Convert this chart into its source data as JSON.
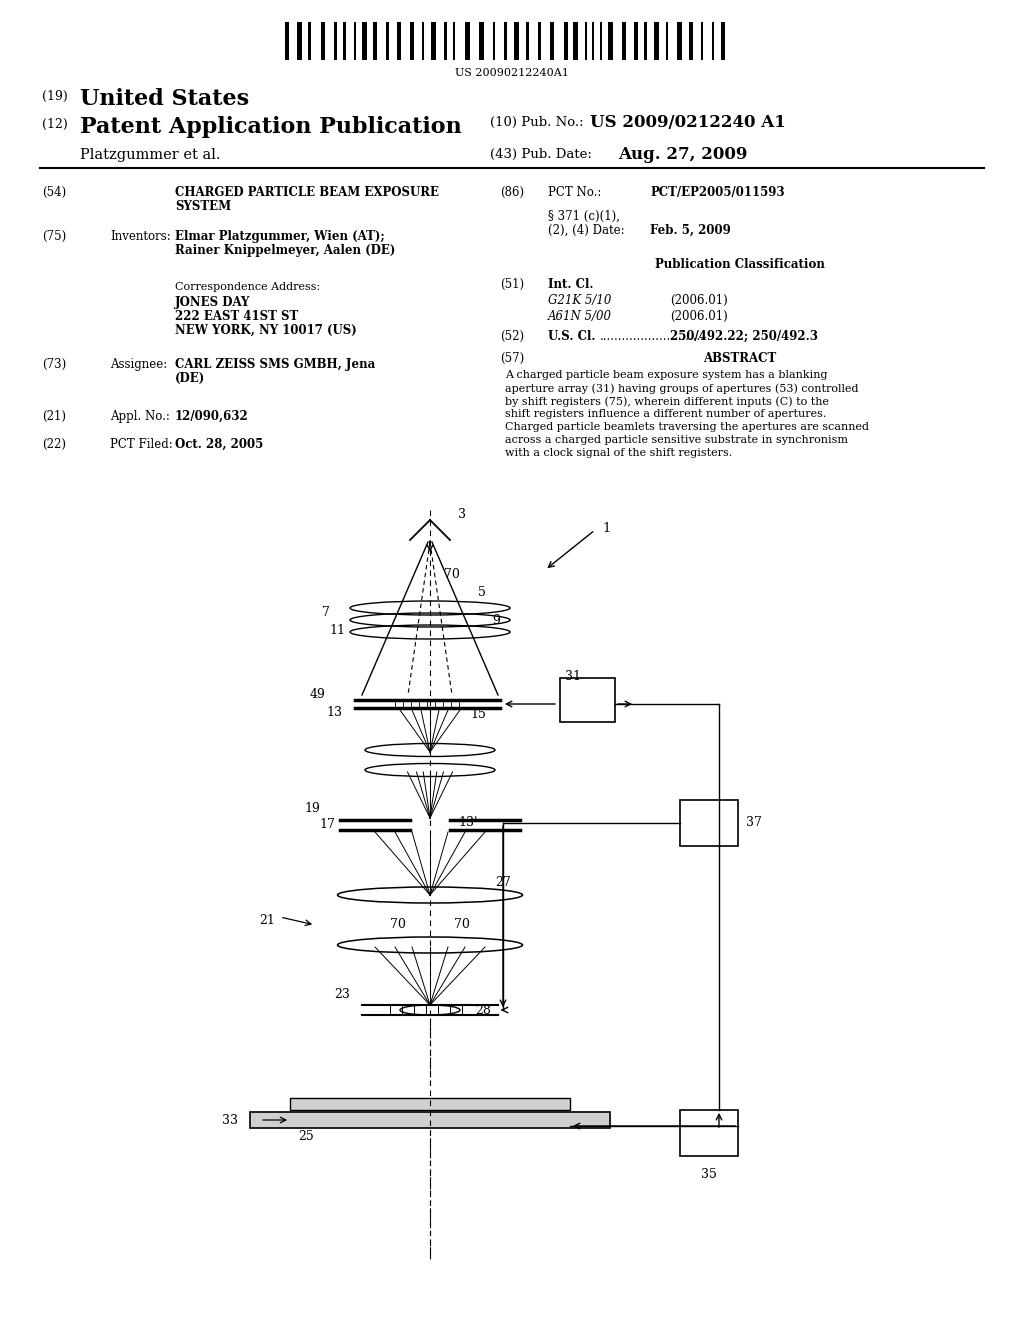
{
  "background_color": "#ffffff",
  "page_width": 10.24,
  "page_height": 13.2,
  "barcode_text": "US 20090212240A1",
  "title_19": "(19)",
  "title_us": "United States",
  "title_12": "(12)",
  "title_pat": "Patent Application Publication",
  "pub_no_label": "(10) Pub. No.:",
  "pub_no_value": "US 2009/0212240 A1",
  "pub_date_label": "(43) Pub. Date:",
  "pub_date_value": "Aug. 27, 2009",
  "inventor_name": "Platzgummer et al.",
  "field_54_label": "(54)",
  "field_54_title": "CHARGED PARTICLE BEAM EXPOSURE\nSYSTEM",
  "field_75_label": "(75)",
  "field_75_name": "Inventors:",
  "field_75_value1": "Elmar Platzgummer, Wien (AT);",
  "field_75_value2": "Rainer Knippelmeyer, Aalen (DE)",
  "field_corr_label": "Correspondence Address:",
  "field_corr_line1": "JONES DAY",
  "field_corr_line2": "222 EAST 41ST ST",
  "field_corr_line3": "NEW YORK, NY 10017 (US)",
  "field_73_label": "(73)",
  "field_73_name": "Assignee:",
  "field_73_value1": "CARL ZEISS SMS GMBH, Jena",
  "field_73_value2": "(DE)",
  "field_21_label": "(21)",
  "field_21_name": "Appl. No.:",
  "field_21_value": "12/090,632",
  "field_22_label": "(22)",
  "field_22_name": "PCT Filed:",
  "field_22_value": "Oct. 28, 2005",
  "field_86_label": "(86)",
  "field_86_name": "PCT No.:",
  "field_86_value": "PCT/EP2005/011593",
  "field_86b_line1": "§ 371 (c)(1),",
  "field_86b_line2": "(2), (4) Date:",
  "field_86b_date": "Feb. 5, 2009",
  "pub_class_label": "Publication Classification",
  "field_51_label": "(51)",
  "field_51_name": "Int. Cl.",
  "field_51_value1": "G21K 5/10",
  "field_51_year1": "(2006.01)",
  "field_51_value2": "A61N 5/00",
  "field_51_year2": "(2006.01)",
  "field_52_label": "(52)",
  "field_52_name": "U.S. Cl.",
  "field_52_dots": "............................",
  "field_52_value": "250/492.22; 250/492.3",
  "field_57_label": "(57)",
  "field_57_name": "ABSTRACT",
  "field_57_value": "A charged particle beam exposure system has a blanking aperture array (31) having groups of apertures (53) controlled by shift registers (75), wherein different inputs (C) to the shift registers influence a different number of apertures. Charged particle beamlets traversing the apertures are scanned across a charged particle sensitive substrate in synchronism with a clock signal of the shift registers."
}
